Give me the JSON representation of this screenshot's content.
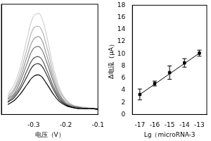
{
  "chart_data": [
    {
      "type": "line",
      "x_label": "电压（V）",
      "x": [
        -0.38,
        -0.36,
        -0.34,
        -0.32,
        -0.3,
        -0.28,
        -0.26,
        -0.24,
        -0.22,
        -0.2,
        -0.18,
        -0.16,
        -0.14,
        -0.12,
        -0.1
      ],
      "series": [
        {
          "color": "#000000",
          "values": [
            1.0,
            1.4,
            2.1,
            3.0,
            3.8,
            3.9,
            3.1,
            2.1,
            1.3,
            0.9,
            0.7,
            0.6,
            0.6,
            0.6,
            0.5
          ]
        },
        {
          "color": "#333333",
          "values": [
            1.2,
            1.7,
            2.6,
            3.8,
            4.9,
            5.0,
            4.0,
            2.6,
            1.5,
            1.0,
            0.7,
            0.6,
            0.6,
            0.6,
            0.5
          ]
        },
        {
          "color": "#555555",
          "values": [
            1.3,
            1.9,
            2.9,
            4.4,
            5.6,
            5.7,
            4.5,
            2.9,
            1.7,
            1.0,
            0.8,
            0.7,
            0.6,
            0.6,
            0.5
          ]
        },
        {
          "color": "#777777",
          "values": [
            1.5,
            2.1,
            3.4,
            5.1,
            6.6,
            6.7,
            5.3,
            3.4,
            1.9,
            1.1,
            0.8,
            0.7,
            0.6,
            0.6,
            0.5
          ]
        },
        {
          "color": "#999999",
          "values": [
            1.6,
            2.4,
            3.8,
            5.8,
            7.5,
            7.7,
            6.0,
            3.8,
            2.1,
            1.2,
            0.9,
            0.7,
            0.6,
            0.6,
            0.6
          ]
        },
        {
          "color": "#b5b5b5",
          "values": [
            1.8,
            2.6,
            4.3,
            6.6,
            8.6,
            8.7,
            6.9,
            4.3,
            2.4,
            1.4,
            0.9,
            0.8,
            0.7,
            0.6,
            0.6
          ]
        },
        {
          "color": "#d0d0d0",
          "values": [
            2.0,
            3.0,
            4.9,
            7.6,
            9.8,
            10.0,
            7.9,
            4.9,
            2.7,
            1.5,
            1.0,
            0.8,
            0.7,
            0.6,
            0.6
          ]
        }
      ],
      "xlim": [
        -0.4,
        -0.1
      ],
      "xticks": [
        -0.3,
        -0.2,
        -0.1
      ],
      "ylim": [
        0,
        11
      ],
      "tick_labels": "x",
      "grid": false
    },
    {
      "type": "scatter",
      "x_label": "Lg（microRNA-3",
      "y_label": "Δ电流（μA）",
      "x": [
        -17,
        -16,
        -15,
        -14,
        -13
      ],
      "values": [
        3.3,
        5.1,
        6.9,
        8.5,
        10.1
      ],
      "errors": [
        0.9,
        0.4,
        1.1,
        0.7,
        0.5
      ],
      "fit": {
        "x": [
          -17,
          -13
        ],
        "values": [
          3.3,
          10.1
        ]
      },
      "color": "#000000",
      "marker": "square",
      "xlim": [
        -17.5,
        -12.5
      ],
      "xticks": [
        -17,
        -16,
        -15,
        -14,
        -13
      ],
      "ylim": [
        0,
        18
      ],
      "yticks": [
        0,
        2,
        4,
        6,
        8,
        10,
        12,
        14,
        16,
        18
      ],
      "grid": false
    }
  ]
}
